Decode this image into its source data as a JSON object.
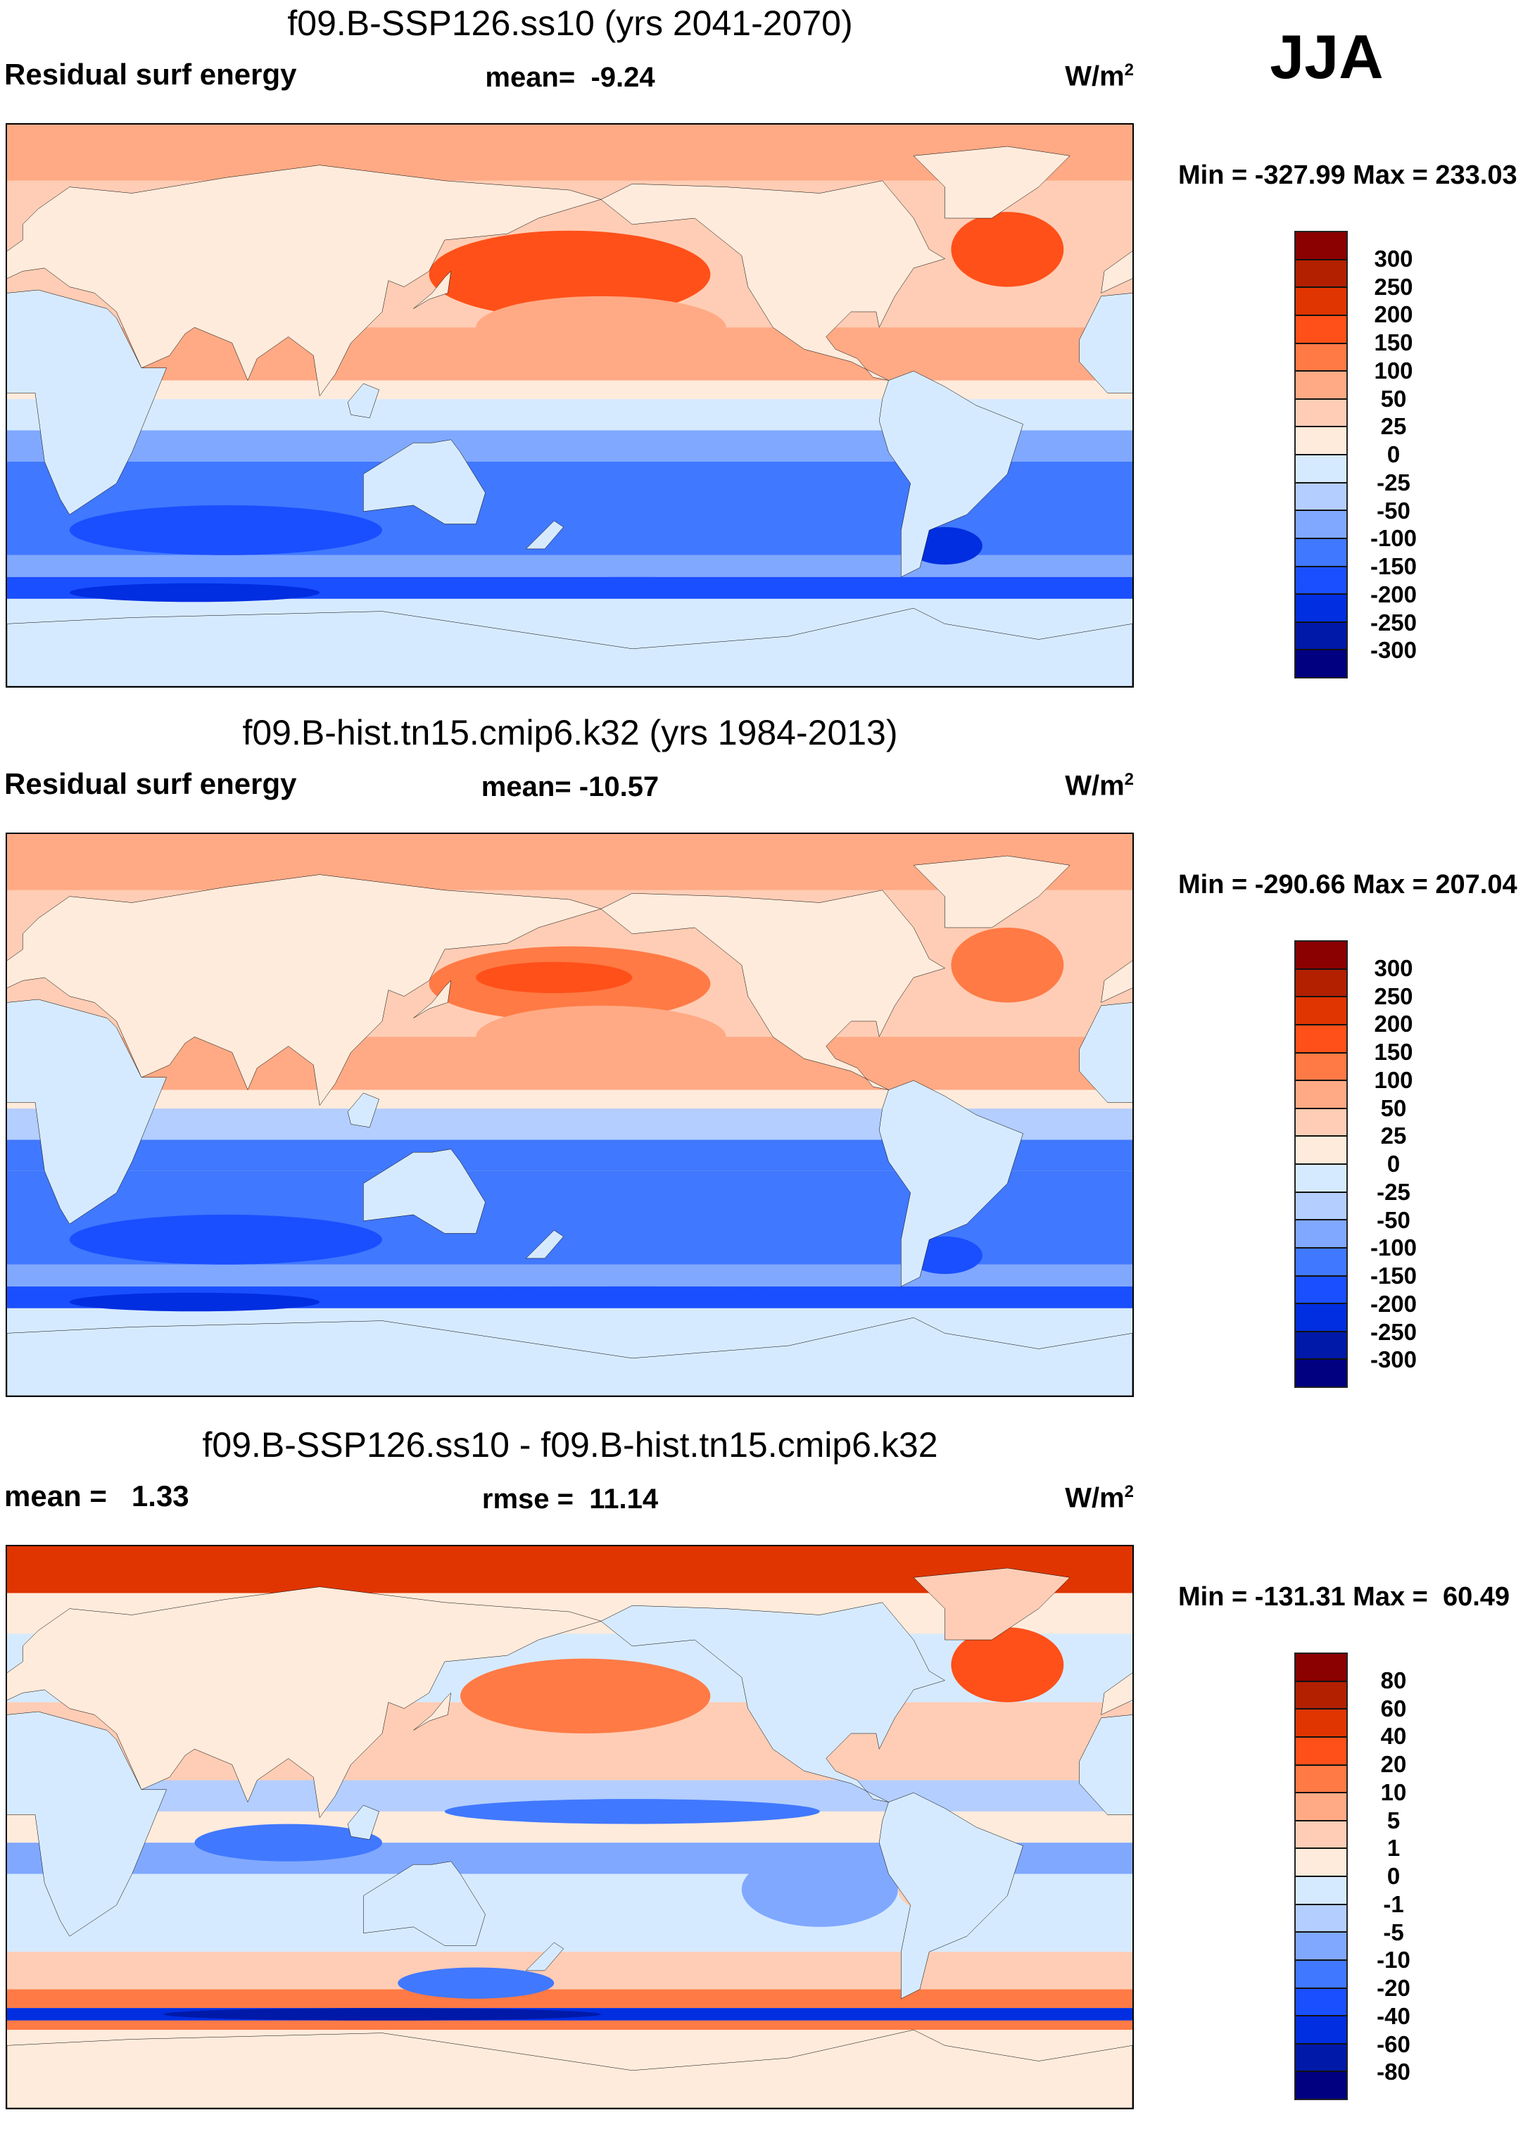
{
  "season": "JJA",
  "colors": [
    "#8b0000",
    "#b22000",
    "#e03500",
    "#ff5019",
    "#ff7a45",
    "#ffaa85",
    "#ffcdb5",
    "#ffebdb",
    "#d6eaff",
    "#b3ceff",
    "#80a8ff",
    "#4078ff",
    "#1a4fff",
    "#002ee0",
    "#0019a8",
    "#000080"
  ],
  "land_outline_color": "#000000",
  "chart_data": [
    {
      "type": "heatmap",
      "title": "f09.B-SSP126.ss10 (yrs 2041-2070)",
      "left_label": "Residual surf energy",
      "center_label": "mean=  -9.24",
      "units": "W/m",
      "units_sup": "2",
      "minmax": "Min = -327.99 Max = 233.03",
      "levels": [
        "300",
        "250",
        "200",
        "150",
        "100",
        "50",
        "25",
        "0",
        "-25",
        "-50",
        "-100",
        "-150",
        "-200",
        "-250",
        "-300"
      ],
      "xlim": [
        0,
        360
      ],
      "ylim": [
        -90,
        90
      ]
    },
    {
      "type": "heatmap",
      "title": "f09.B-hist.tn15.cmip6.k32 (yrs 1984-2013)",
      "left_label": "Residual surf energy",
      "center_label": "mean= -10.57",
      "units": "W/m",
      "units_sup": "2",
      "minmax": "Min = -290.66 Max = 207.04",
      "levels": [
        "300",
        "250",
        "200",
        "150",
        "100",
        "50",
        "25",
        "0",
        "-25",
        "-50",
        "-100",
        "-150",
        "-200",
        "-250",
        "-300"
      ],
      "xlim": [
        0,
        360
      ],
      "ylim": [
        -90,
        90
      ]
    },
    {
      "type": "heatmap",
      "title": "f09.B-SSP126.ss10 - f09.B-hist.tn15.cmip6.k32",
      "left_label": "mean =   1.33",
      "center_label": "rmse =  11.14",
      "units": "W/m",
      "units_sup": "2",
      "minmax": "Min = -131.31 Max =  60.49",
      "levels": [
        "80",
        "60",
        "40",
        "20",
        "10",
        "5",
        "1",
        "0",
        "-1",
        "-5",
        "-10",
        "-20",
        "-40",
        "-60",
        "-80"
      ],
      "xlim": [
        0,
        360
      ],
      "ylim": [
        -90,
        90
      ]
    }
  ]
}
